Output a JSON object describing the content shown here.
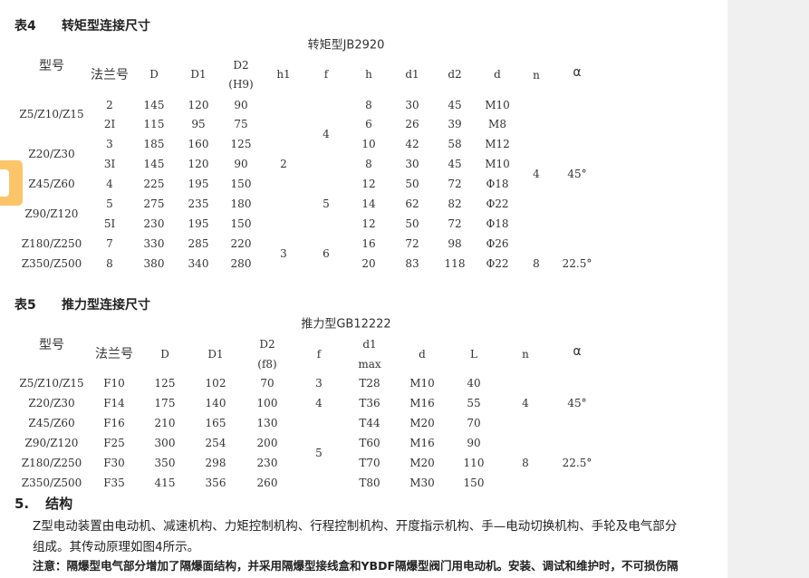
{
  "table4": {
    "caption_no": "表4",
    "caption": "转矩型连接尺寸",
    "subtitle": "转矩型JB2920",
    "headers": {
      "model": "型号",
      "flange": "法兰号",
      "D": "D",
      "D1": "D1",
      "D2": "D2",
      "D2_tol": "(H9)",
      "h1": "h1",
      "f": "f",
      "h": "h",
      "d1": "d1",
      "d2": "d2",
      "d": "d",
      "n": "n",
      "alpha": "α"
    },
    "models": [
      "Z5/Z10/Z15",
      "Z20/Z30",
      "Z45/Z60",
      "Z90/Z120",
      "Z180/Z250",
      "Z350/Z500"
    ],
    "rows": [
      [
        "2",
        "145",
        "120",
        "90",
        "8",
        "30",
        "45",
        "M10"
      ],
      [
        "2I",
        "115",
        "95",
        "75",
        "6",
        "26",
        "39",
        "M8"
      ],
      [
        "3",
        "185",
        "160",
        "125",
        "10",
        "42",
        "58",
        "M12"
      ],
      [
        "3I",
        "145",
        "120",
        "90",
        "8",
        "30",
        "45",
        "M10"
      ],
      [
        "4",
        "225",
        "195",
        "150",
        "12",
        "50",
        "72",
        "Φ18"
      ],
      [
        "5",
        "275",
        "235",
        "180",
        "14",
        "62",
        "82",
        "Φ22"
      ],
      [
        "5I",
        "230",
        "195",
        "150",
        "12",
        "50",
        "72",
        "Φ18"
      ],
      [
        "7",
        "330",
        "285",
        "220",
        "16",
        "72",
        "98",
        "Φ26"
      ],
      [
        "8",
        "380",
        "340",
        "280",
        "20",
        "83",
        "118",
        "Φ22"
      ]
    ],
    "h1": [
      "2",
      "3"
    ],
    "f": [
      "4",
      "5",
      "6"
    ],
    "n": [
      "4",
      "8"
    ],
    "alpha": [
      "45°",
      "22.5°"
    ]
  },
  "table5": {
    "caption_no": "表5",
    "caption": "推力型连接尺寸",
    "subtitle": "推力型GB12222",
    "headers": {
      "model": "型号",
      "flange": "法兰号",
      "D": "D",
      "D1": "D1",
      "D2": "D2",
      "D2_tol": "(f8)",
      "f": "f",
      "d1": "d1",
      "d1_sub": "max",
      "d": "d",
      "L": "L",
      "n": "n",
      "alpha": "α"
    },
    "rows": [
      [
        "Z5/Z10/Z15",
        "F10",
        "125",
        "102",
        "70",
        "T28",
        "M10",
        "40"
      ],
      [
        "Z20/Z30",
        "F14",
        "175",
        "140",
        "100",
        "T36",
        "M16",
        "55"
      ],
      [
        "Z45/Z60",
        "F16",
        "210",
        "165",
        "130",
        "T44",
        "M20",
        "70"
      ],
      [
        "Z90/Z120",
        "F25",
        "300",
        "254",
        "200",
        "T60",
        "M16",
        "90"
      ],
      [
        "Z180/Z250",
        "F30",
        "350",
        "298",
        "230",
        "T70",
        "M20",
        "110"
      ],
      [
        "Z350/Z500",
        "F35",
        "415",
        "356",
        "260",
        "T80",
        "M30",
        "150"
      ]
    ],
    "f": [
      "3",
      "4",
      "5"
    ],
    "n": [
      "4",
      "8"
    ],
    "alpha": [
      "45°",
      "22.5°"
    ]
  },
  "section5": {
    "number": "5.",
    "title": "结构",
    "para1": "Z型电动装置由电动机、减速机构、力矩控制机构、行程控制机构、开度指示机构、手—电动切换机构、手轮及电气部分",
    "para2": "组成。其传动原理如图4所示。",
    "note": "注意：隔爆型电气部分增加了隔爆面结构，并采用隔爆型接线盒和YBDF隔爆型阀门用电动机。安装、调试和维护时，不可损伤隔"
  }
}
